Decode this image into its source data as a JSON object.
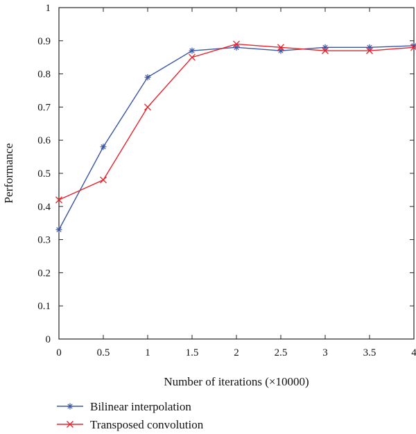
{
  "chart_data": {
    "type": "line",
    "xlabel": "Number of iterations (×10000)",
    "ylabel": "Performance",
    "xlim": [
      0,
      4
    ],
    "ylim": [
      0,
      1
    ],
    "x_ticks": [
      "0",
      "0.5",
      "1",
      "1.5",
      "2",
      "2.5",
      "3",
      "3.5",
      "4"
    ],
    "y_ticks": [
      "0",
      "0.1",
      "0.2",
      "0.3",
      "0.4",
      "0.5",
      "0.6",
      "0.7",
      "0.8",
      "0.9",
      "1"
    ],
    "x": [
      0,
      0.5,
      1,
      1.5,
      2,
      2.5,
      3,
      3.5,
      4
    ],
    "grid": false,
    "legend_position": "bottom",
    "series": [
      {
        "name": "Bilinear interpolation",
        "color": "#3a55a4",
        "marker": "asterisk",
        "values": [
          0.33,
          0.58,
          0.79,
          0.87,
          0.88,
          0.87,
          0.88,
          0.88,
          0.885
        ]
      },
      {
        "name": "Transposed convolution",
        "color": "#e8202a",
        "marker": "x",
        "values": [
          0.42,
          0.48,
          0.7,
          0.85,
          0.89,
          0.88,
          0.87,
          0.87,
          0.88
        ]
      }
    ]
  }
}
